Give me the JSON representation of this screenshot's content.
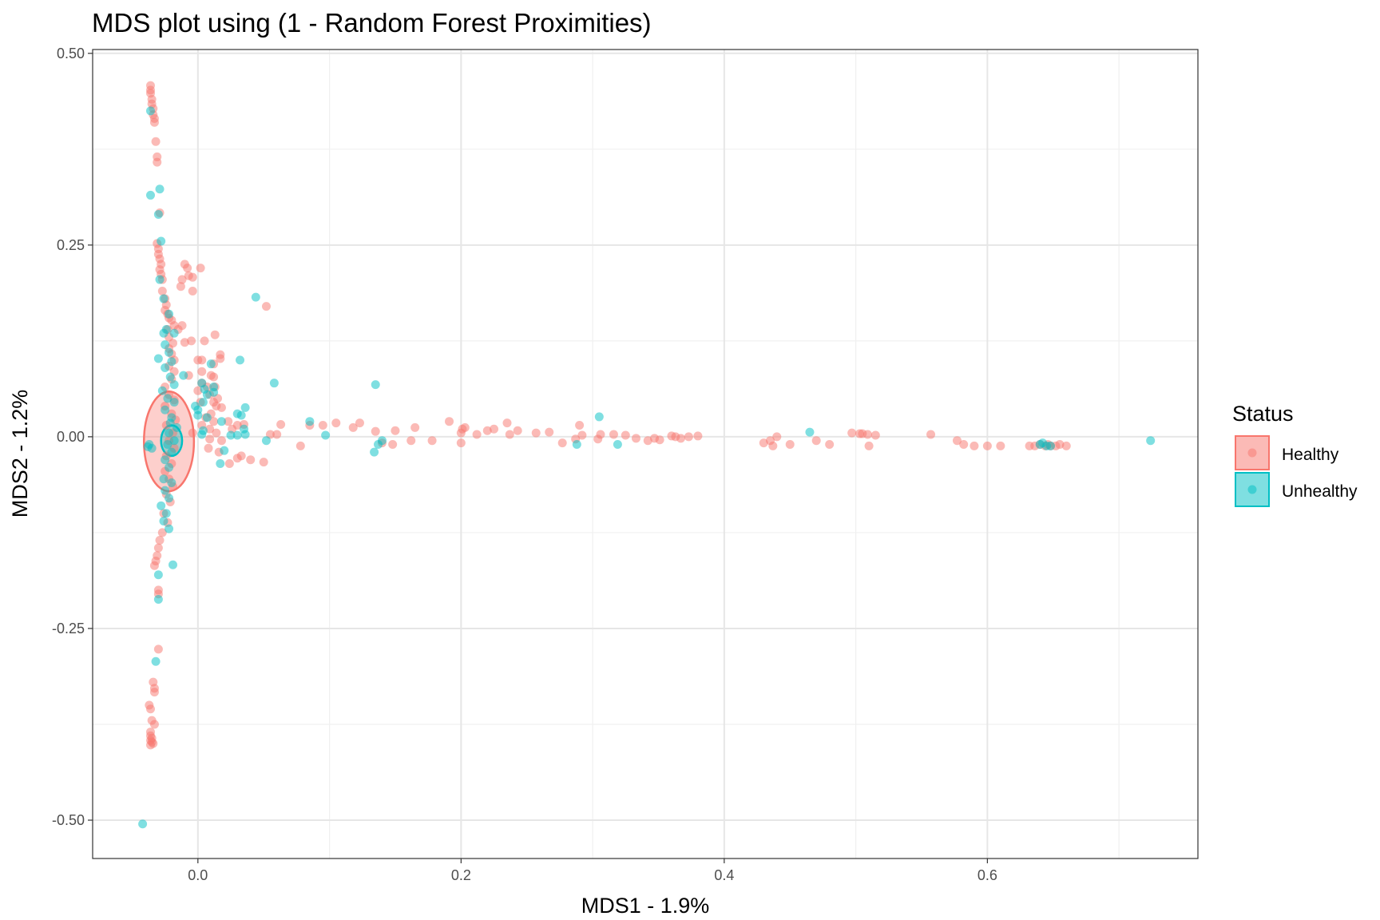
{
  "chart_data": {
    "type": "scatter",
    "title": "MDS plot using (1 - Random Forest Proximities)",
    "xlabel": "MDS1 - 1.9%",
    "ylabel": "MDS2 - 1.2%",
    "xlim": [
      -0.08,
      0.76
    ],
    "ylim": [
      -0.55,
      0.505
    ],
    "x_ticks": [
      0.0,
      0.2,
      0.4,
      0.6
    ],
    "x_tick_labels": [
      "0.0",
      "0.2",
      "0.4",
      "0.6"
    ],
    "y_ticks": [
      0.5,
      0.25,
      0.0,
      -0.25,
      -0.5
    ],
    "y_tick_labels": [
      "0.50",
      "0.25",
      "0.00",
      "-0.25",
      "-0.50"
    ],
    "grid": true,
    "legend": {
      "title": "Status",
      "position": "right",
      "entries": [
        "Healthy",
        "Unhealthy"
      ]
    },
    "series": [
      {
        "name": "Healthy",
        "color": "#F8766D",
        "points": [
          [
            -0.036,
            0.458
          ],
          [
            -0.036,
            0.452
          ],
          [
            -0.036,
            0.448
          ],
          [
            -0.035,
            0.44
          ],
          [
            -0.035,
            0.434
          ],
          [
            -0.034,
            0.428
          ],
          [
            -0.034,
            0.42
          ],
          [
            -0.033,
            0.415
          ],
          [
            -0.033,
            0.41
          ],
          [
            -0.032,
            0.385
          ],
          [
            -0.031,
            0.365
          ],
          [
            -0.031,
            0.358
          ],
          [
            -0.029,
            0.292
          ],
          [
            -0.031,
            0.252
          ],
          [
            -0.03,
            0.245
          ],
          [
            -0.03,
            0.238
          ],
          [
            -0.029,
            0.232
          ],
          [
            -0.028,
            0.225
          ],
          [
            -0.029,
            0.218
          ],
          [
            -0.028,
            0.212
          ],
          [
            -0.027,
            0.205
          ],
          [
            -0.027,
            0.19
          ],
          [
            -0.025,
            0.18
          ],
          [
            -0.024,
            0.172
          ],
          [
            -0.025,
            0.165
          ],
          [
            -0.023,
            0.16
          ],
          [
            -0.022,
            0.155
          ],
          [
            -0.02,
            0.152
          ],
          [
            -0.018,
            0.145
          ],
          [
            -0.023,
            0.14
          ],
          [
            -0.015,
            0.14
          ],
          [
            -0.022,
            0.13
          ],
          [
            -0.019,
            0.122
          ],
          [
            -0.022,
            0.115
          ],
          [
            -0.02,
            0.108
          ],
          [
            -0.018,
            0.1
          ],
          [
            -0.022,
            0.092
          ],
          [
            -0.018,
            0.085
          ],
          [
            -0.02,
            0.075
          ],
          [
            -0.025,
            0.065
          ],
          [
            -0.022,
            0.055
          ],
          [
            -0.018,
            0.048
          ],
          [
            -0.025,
            0.04
          ],
          [
            -0.02,
            0.03
          ],
          [
            -0.017,
            0.022
          ],
          [
            -0.024,
            0.015
          ],
          [
            -0.019,
            0.005
          ],
          [
            -0.022,
            -0.005
          ],
          [
            -0.018,
            -0.015
          ],
          [
            -0.024,
            -0.025
          ],
          [
            -0.02,
            -0.035
          ],
          [
            -0.025,
            -0.045
          ],
          [
            -0.022,
            -0.055
          ],
          [
            -0.019,
            -0.065
          ],
          [
            -0.024,
            -0.075
          ],
          [
            -0.021,
            -0.085
          ],
          [
            -0.026,
            -0.1
          ],
          [
            -0.023,
            -0.112
          ],
          [
            -0.027,
            -0.125
          ],
          [
            -0.029,
            -0.135
          ],
          [
            -0.03,
            -0.145
          ],
          [
            -0.031,
            -0.155
          ],
          [
            -0.032,
            -0.162
          ],
          [
            -0.033,
            -0.168
          ],
          [
            -0.03,
            -0.2
          ],
          [
            -0.03,
            -0.205
          ],
          [
            -0.03,
            -0.277
          ],
          [
            -0.034,
            -0.32
          ],
          [
            -0.033,
            -0.328
          ],
          [
            -0.033,
            -0.333
          ],
          [
            -0.037,
            -0.35
          ],
          [
            -0.036,
            -0.355
          ],
          [
            -0.035,
            -0.37
          ],
          [
            -0.033,
            -0.375
          ],
          [
            -0.036,
            -0.385
          ],
          [
            -0.036,
            -0.39
          ],
          [
            -0.035,
            -0.393
          ],
          [
            -0.036,
            -0.396
          ],
          [
            -0.035,
            -0.398
          ],
          [
            -0.034,
            -0.4
          ],
          [
            -0.036,
            -0.402
          ],
          [
            -0.01,
            0.225
          ],
          [
            -0.008,
            0.22
          ],
          [
            0.002,
            0.22
          ],
          [
            -0.007,
            0.21
          ],
          [
            -0.012,
            0.205
          ],
          [
            -0.004,
            0.208
          ],
          [
            -0.013,
            0.196
          ],
          [
            -0.004,
            0.19
          ],
          [
            -0.012,
            0.145
          ],
          [
            -0.005,
            0.125
          ],
          [
            0.005,
            0.125
          ],
          [
            -0.01,
            0.123
          ],
          [
            0.013,
            0.133
          ],
          [
            0.017,
            0.107
          ],
          [
            0.017,
            0.102
          ],
          [
            0.003,
            0.1
          ],
          [
            0.0,
            0.1
          ],
          [
            0.012,
            0.095
          ],
          [
            0.003,
            0.085
          ],
          [
            0.01,
            0.08
          ],
          [
            -0.007,
            0.08
          ],
          [
            0.012,
            0.078
          ],
          [
            0.003,
            0.07
          ],
          [
            0.007,
            0.065
          ],
          [
            0.013,
            0.065
          ],
          [
            0.0,
            0.06
          ],
          [
            0.009,
            0.055
          ],
          [
            0.015,
            0.05
          ],
          [
            0.012,
            0.045
          ],
          [
            0.002,
            0.045
          ],
          [
            0.014,
            0.04
          ],
          [
            0.018,
            0.038
          ],
          [
            0.01,
            0.03
          ],
          [
            0.006,
            0.025
          ],
          [
            0.012,
            0.02
          ],
          [
            0.003,
            0.015
          ],
          [
            0.009,
            0.01
          ],
          [
            0.014,
            0.005
          ],
          [
            -0.004,
            0.005
          ],
          [
            0.009,
            -0.003
          ],
          [
            0.018,
            -0.005
          ],
          [
            0.008,
            -0.015
          ],
          [
            0.016,
            -0.02
          ],
          [
            0.03,
            0.015
          ],
          [
            0.023,
            0.02
          ],
          [
            0.026,
            0.01
          ],
          [
            0.035,
            0.016
          ],
          [
            0.033,
            -0.025
          ],
          [
            0.03,
            -0.028
          ],
          [
            0.024,
            -0.035
          ],
          [
            0.04,
            -0.03
          ],
          [
            0.05,
            -0.033
          ],
          [
            0.052,
            0.17
          ],
          [
            0.055,
            0.003
          ],
          [
            0.06,
            0.003
          ],
          [
            0.063,
            0.016
          ],
          [
            0.078,
            -0.012
          ],
          [
            0.085,
            0.015
          ],
          [
            0.095,
            0.015
          ],
          [
            0.105,
            0.018
          ],
          [
            0.118,
            0.012
          ],
          [
            0.123,
            0.018
          ],
          [
            0.135,
            0.007
          ],
          [
            0.14,
            -0.008
          ],
          [
            0.148,
            -0.01
          ],
          [
            0.15,
            0.008
          ],
          [
            0.162,
            -0.005
          ],
          [
            0.165,
            0.012
          ],
          [
            0.178,
            -0.005
          ],
          [
            0.191,
            0.02
          ],
          [
            0.2,
            0.005
          ],
          [
            0.201,
            0.01
          ],
          [
            0.2,
            -0.008
          ],
          [
            0.203,
            0.012
          ],
          [
            0.212,
            0.003
          ],
          [
            0.22,
            0.008
          ],
          [
            0.225,
            0.01
          ],
          [
            0.235,
            0.018
          ],
          [
            0.237,
            0.003
          ],
          [
            0.243,
            0.008
          ],
          [
            0.257,
            0.005
          ],
          [
            0.267,
            0.006
          ],
          [
            0.277,
            -0.008
          ],
          [
            0.287,
            -0.003
          ],
          [
            0.29,
            0.015
          ],
          [
            0.292,
            0.002
          ],
          [
            0.304,
            -0.003
          ],
          [
            0.306,
            0.003
          ],
          [
            0.316,
            0.003
          ],
          [
            0.325,
            0.002
          ],
          [
            0.333,
            -0.002
          ],
          [
            0.342,
            -0.005
          ],
          [
            0.347,
            -0.002
          ],
          [
            0.351,
            -0.004
          ],
          [
            0.36,
            0.001
          ],
          [
            0.363,
            0.0
          ],
          [
            0.367,
            -0.002
          ],
          [
            0.373,
            0.0
          ],
          [
            0.38,
            0.001
          ],
          [
            0.43,
            -0.008
          ],
          [
            0.435,
            -0.005
          ],
          [
            0.437,
            -0.012
          ],
          [
            0.44,
            0.0
          ],
          [
            0.45,
            -0.01
          ],
          [
            0.47,
            -0.005
          ],
          [
            0.48,
            -0.01
          ],
          [
            0.497,
            0.005
          ],
          [
            0.503,
            0.004
          ],
          [
            0.505,
            0.004
          ],
          [
            0.509,
            0.003
          ],
          [
            0.51,
            -0.012
          ],
          [
            0.515,
            0.002
          ],
          [
            0.557,
            0.003
          ],
          [
            0.577,
            -0.005
          ],
          [
            0.582,
            -0.01
          ],
          [
            0.59,
            -0.012
          ],
          [
            0.6,
            -0.012
          ],
          [
            0.61,
            -0.012
          ],
          [
            0.632,
            -0.012
          ],
          [
            0.636,
            -0.012
          ],
          [
            0.64,
            -0.01
          ],
          [
            0.644,
            -0.012
          ],
          [
            0.646,
            -0.01
          ],
          [
            0.648,
            -0.012
          ],
          [
            0.652,
            -0.012
          ],
          [
            0.655,
            -0.01
          ],
          [
            0.66,
            -0.012
          ]
        ]
      },
      {
        "name": "Unhealthy",
        "color": "#00BFC4",
        "points": [
          [
            -0.042,
            -0.505
          ],
          [
            -0.036,
            0.425
          ],
          [
            -0.036,
            0.315
          ],
          [
            -0.029,
            0.323
          ],
          [
            -0.03,
            0.29
          ],
          [
            -0.028,
            0.255
          ],
          [
            -0.029,
            0.205
          ],
          [
            -0.026,
            0.18
          ],
          [
            -0.022,
            0.16
          ],
          [
            -0.024,
            0.14
          ],
          [
            -0.026,
            0.135
          ],
          [
            -0.018,
            0.135
          ],
          [
            -0.025,
            0.12
          ],
          [
            -0.03,
            0.102
          ],
          [
            -0.022,
            0.11
          ],
          [
            -0.02,
            0.098
          ],
          [
            -0.025,
            0.09
          ],
          [
            -0.011,
            0.08
          ],
          [
            -0.021,
            0.078
          ],
          [
            -0.018,
            0.068
          ],
          [
            -0.027,
            0.06
          ],
          [
            -0.023,
            0.05
          ],
          [
            -0.018,
            0.045
          ],
          [
            -0.025,
            0.035
          ],
          [
            -0.02,
            0.025
          ],
          [
            -0.021,
            0.018
          ],
          [
            -0.016,
            0.012
          ],
          [
            -0.022,
            0.005
          ],
          [
            -0.018,
            -0.005
          ],
          [
            -0.023,
            -0.01
          ],
          [
            -0.02,
            -0.02
          ],
          [
            -0.025,
            -0.03
          ],
          [
            -0.022,
            -0.04
          ],
          [
            -0.026,
            -0.055
          ],
          [
            -0.02,
            -0.06
          ],
          [
            -0.025,
            -0.07
          ],
          [
            -0.022,
            -0.08
          ],
          [
            -0.028,
            -0.09
          ],
          [
            -0.024,
            -0.1
          ],
          [
            -0.026,
            -0.11
          ],
          [
            -0.022,
            -0.12
          ],
          [
            -0.03,
            -0.18
          ],
          [
            -0.03,
            -0.212
          ],
          [
            -0.032,
            -0.293
          ],
          [
            -0.019,
            -0.167
          ],
          [
            -0.038,
            -0.013
          ],
          [
            -0.037,
            -0.01
          ],
          [
            -0.035,
            -0.015
          ],
          [
            0.01,
            0.095
          ],
          [
            0.003,
            0.07
          ],
          [
            0.012,
            0.065
          ],
          [
            0.005,
            0.062
          ],
          [
            0.012,
            0.058
          ],
          [
            0.007,
            0.055
          ],
          [
            0.004,
            0.045
          ],
          [
            -0.002,
            0.04
          ],
          [
            0.0,
            0.035
          ],
          [
            0.018,
            0.02
          ],
          [
            0.0,
            0.028
          ],
          [
            0.007,
            0.025
          ],
          [
            0.004,
            0.008
          ],
          [
            0.003,
            0.003
          ],
          [
            0.02,
            -0.018
          ],
          [
            0.017,
            -0.035
          ],
          [
            0.025,
            0.002
          ],
          [
            0.03,
            0.002
          ],
          [
            0.03,
            0.03
          ],
          [
            0.033,
            0.028
          ],
          [
            0.036,
            0.038
          ],
          [
            0.035,
            0.01
          ],
          [
            0.036,
            0.003
          ],
          [
            0.032,
            0.1
          ],
          [
            0.044,
            0.182
          ],
          [
            0.052,
            -0.005
          ],
          [
            0.058,
            0.07
          ],
          [
            0.085,
            0.02
          ],
          [
            0.097,
            0.002
          ],
          [
            0.135,
            0.068
          ],
          [
            0.134,
            -0.02
          ],
          [
            0.137,
            -0.01
          ],
          [
            0.14,
            -0.005
          ],
          [
            0.288,
            -0.01
          ],
          [
            0.305,
            0.026
          ],
          [
            0.319,
            -0.01
          ],
          [
            0.465,
            0.006
          ],
          [
            0.64,
            -0.01
          ],
          [
            0.642,
            -0.008
          ],
          [
            0.645,
            -0.012
          ],
          [
            0.648,
            -0.012
          ],
          [
            0.724,
            -0.005
          ]
        ]
      }
    ],
    "ellipses": [
      {
        "series": "Healthy",
        "cx": -0.022,
        "cy": -0.006,
        "rx": 0.019,
        "ry": 0.065,
        "color": "#F8766D"
      },
      {
        "series": "Unhealthy",
        "cx": -0.02,
        "cy": -0.005,
        "rx": 0.008,
        "ry": 0.02,
        "color": "#00BFC4"
      }
    ]
  }
}
